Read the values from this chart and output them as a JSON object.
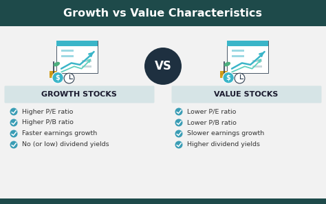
{
  "title": "Growth vs Value Characteristics",
  "title_bg_color": "#1e4a4a",
  "title_text_color": "#ffffff",
  "body_bg_color": "#f2f2f2",
  "bottom_bar_color": "#1e4a4a",
  "left_header": "GROWTH STOCKS",
  "right_header": "VALUE STOCKS",
  "header_bg_color": "#d6e4e6",
  "header_text_color": "#1a1a2e",
  "vs_circle_color": "#1e3040",
  "vs_text_color": "#ffffff",
  "check_color": "#3a9db5",
  "bullet_text_color": "#333333",
  "left_bullets": [
    "Higher P/E ratio",
    "Higher P/B ratio",
    "Faster earnings growth",
    "No (or low) dividend yields"
  ],
  "right_bullets": [
    "Lower P/E ratio",
    "Lower P/B ratio",
    "Slower earnings growth",
    "Higher dividend yields"
  ],
  "icon_teal": "#3ab5c8",
  "icon_dark": "#2d3d4f",
  "icon_green": "#4caf7d",
  "icon_gold": "#d4a017"
}
